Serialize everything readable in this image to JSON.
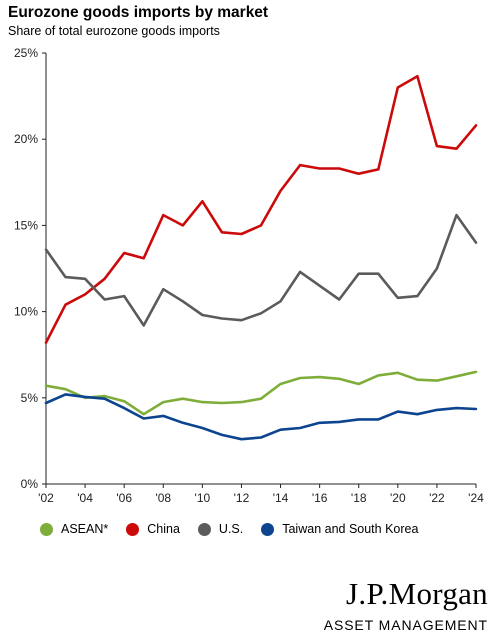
{
  "header": {
    "title": "Eurozone goods imports by market",
    "subtitle": "Share of total eurozone goods imports"
  },
  "brand": {
    "name": "J.P.Morgan",
    "sub": "ASSET MANAGEMENT"
  },
  "chart_data": {
    "type": "line",
    "title": "Eurozone goods imports by market",
    "subtitle": "Share of total eurozone goods imports",
    "xlabel": "",
    "ylabel": "",
    "x": [
      2002,
      2003,
      2004,
      2005,
      2006,
      2007,
      2008,
      2009,
      2010,
      2011,
      2012,
      2013,
      2014,
      2015,
      2016,
      2017,
      2018,
      2019,
      2020,
      2021,
      2022,
      2023,
      2024
    ],
    "xlim": [
      2002,
      2024
    ],
    "ylim": [
      0,
      25
    ],
    "x_ticks": [
      {
        "value": 2002,
        "label": "'02"
      },
      {
        "value": 2004,
        "label": "'04"
      },
      {
        "value": 2006,
        "label": "'06"
      },
      {
        "value": 2008,
        "label": "'08"
      },
      {
        "value": 2010,
        "label": "'10"
      },
      {
        "value": 2012,
        "label": "'12"
      },
      {
        "value": 2014,
        "label": "'14"
      },
      {
        "value": 2016,
        "label": "'16"
      },
      {
        "value": 2018,
        "label": "'18"
      },
      {
        "value": 2020,
        "label": "'20"
      },
      {
        "value": 2022,
        "label": "'22"
      },
      {
        "value": 2024,
        "label": "'24"
      }
    ],
    "y_ticks": [
      {
        "value": 0,
        "label": "0%"
      },
      {
        "value": 5,
        "label": "5%"
      },
      {
        "value": 10,
        "label": "10%"
      },
      {
        "value": 15,
        "label": "15%"
      },
      {
        "value": 20,
        "label": "20%"
      },
      {
        "value": 25,
        "label": "25%"
      }
    ],
    "grid": false,
    "legend_position": "bottom",
    "series": [
      {
        "name": "ASEAN*",
        "color": "#7fad3a",
        "values": [
          5.7,
          5.5,
          5.0,
          5.1,
          4.8,
          4.05,
          4.75,
          4.95,
          4.75,
          4.7,
          4.75,
          4.95,
          5.8,
          6.15,
          6.2,
          6.1,
          5.8,
          6.3,
          6.45,
          6.05,
          6.0,
          6.25,
          6.5
        ]
      },
      {
        "name": "China",
        "color": "#cc0a0a",
        "values": [
          8.2,
          10.4,
          11.0,
          11.9,
          13.4,
          13.1,
          15.6,
          15.0,
          16.4,
          14.6,
          14.5,
          15.0,
          17.0,
          18.5,
          18.3,
          18.3,
          18.0,
          18.25,
          23.0,
          23.65,
          19.6,
          19.45,
          20.8
        ]
      },
      {
        "name": "U.S.",
        "color": "#5b5b5b",
        "values": [
          13.6,
          12.0,
          11.9,
          10.7,
          10.9,
          9.2,
          11.3,
          10.6,
          9.8,
          9.6,
          9.5,
          9.9,
          10.6,
          12.3,
          11.5,
          10.7,
          12.2,
          12.2,
          10.8,
          10.9,
          12.5,
          15.6,
          14.0
        ]
      },
      {
        "name": "Taiwan and South Korea",
        "color": "#0d4490",
        "values": [
          4.7,
          5.2,
          5.05,
          4.95,
          4.4,
          3.8,
          3.95,
          3.55,
          3.25,
          2.85,
          2.6,
          2.7,
          3.15,
          3.25,
          3.55,
          3.6,
          3.75,
          3.75,
          4.2,
          4.05,
          4.3,
          4.4,
          4.35
        ]
      }
    ]
  }
}
